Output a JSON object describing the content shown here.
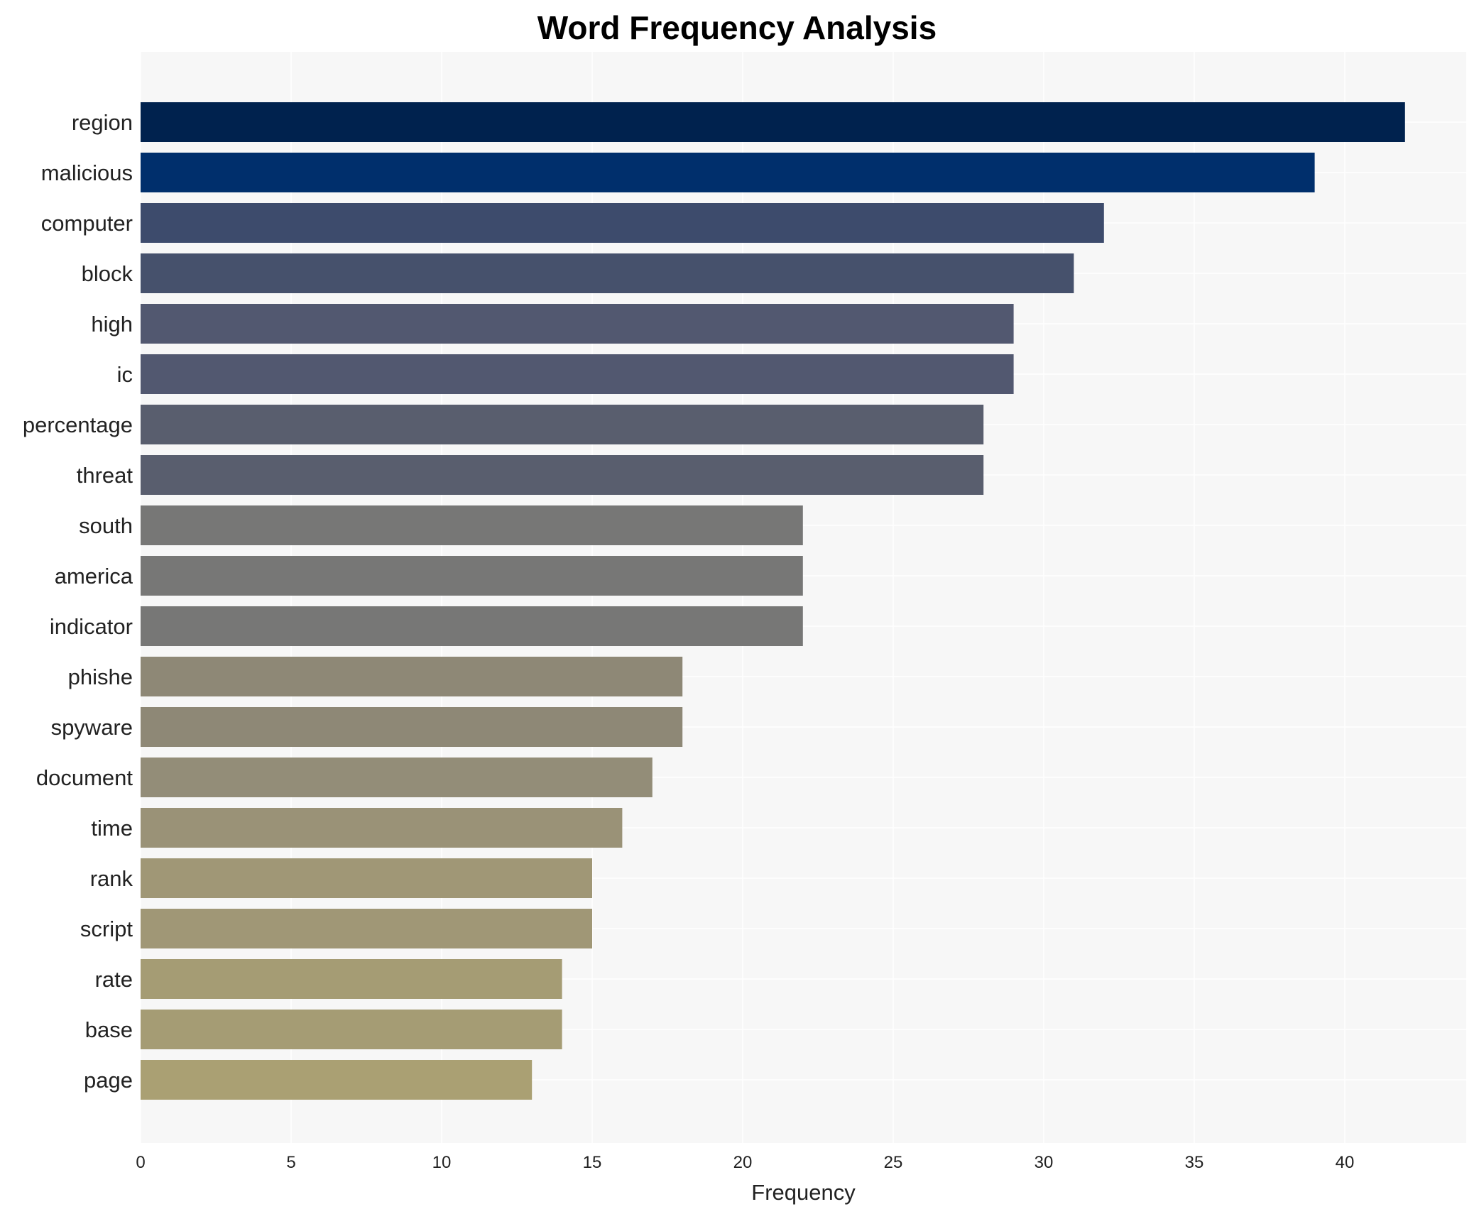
{
  "chart_data": {
    "type": "bar",
    "orientation": "horizontal",
    "title": "Word Frequency Analysis",
    "xlabel": "Frequency",
    "ylabel": "",
    "xlim": [
      0,
      44
    ],
    "xticks": [
      0,
      5,
      10,
      15,
      20,
      25,
      30,
      35,
      40
    ],
    "grid": true,
    "categories": [
      "region",
      "malicious",
      "computer",
      "block",
      "high",
      "ic",
      "percentage",
      "threat",
      "south",
      "america",
      "indicator",
      "phishe",
      "spyware",
      "document",
      "time",
      "rank",
      "script",
      "rate",
      "base",
      "page"
    ],
    "values": [
      42,
      39,
      32,
      31,
      29,
      29,
      28,
      28,
      22,
      22,
      22,
      18,
      18,
      17,
      16,
      15,
      15,
      14,
      14,
      13
    ],
    "colors": [
      "#00224e",
      "#002f6c",
      "#3d4b6c",
      "#46516c",
      "#525870",
      "#525870",
      "#595e6e",
      "#595e6e",
      "#777776",
      "#777776",
      "#777776",
      "#8e8876",
      "#8e8876",
      "#938d78",
      "#9a9277",
      "#a09776",
      "#a09776",
      "#a59c74",
      "#a59c74",
      "#aaa073"
    ],
    "background": "#f7f7f7"
  }
}
